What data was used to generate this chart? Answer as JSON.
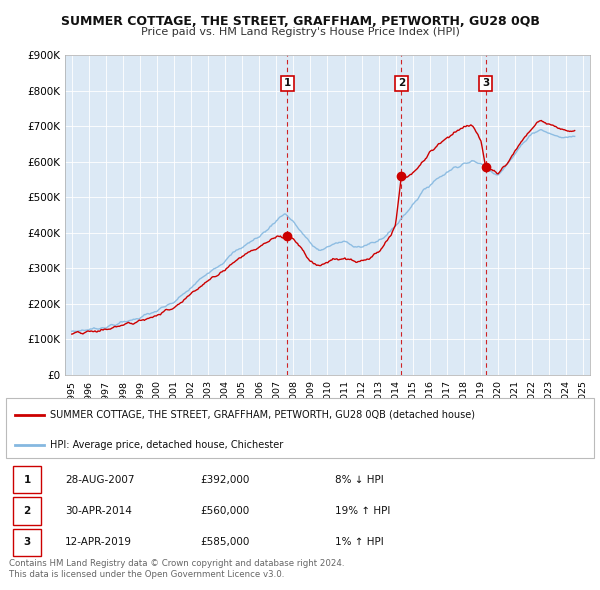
{
  "title": "SUMMER COTTAGE, THE STREET, GRAFFHAM, PETWORTH, GU28 0QB",
  "subtitle": "Price paid vs. HM Land Registry's House Price Index (HPI)",
  "background_color": "#ffffff",
  "plot_bg_color": "#dce9f5",
  "grid_color": "#c8d8e8",
  "hpi_line_color": "#85b8e0",
  "price_line_color": "#cc0000",
  "ylim": [
    0,
    900000
  ],
  "yticks": [
    0,
    100000,
    200000,
    300000,
    400000,
    500000,
    600000,
    700000,
    800000,
    900000
  ],
  "ytick_labels": [
    "£0",
    "£100K",
    "£200K",
    "£300K",
    "£400K",
    "£500K",
    "£600K",
    "£700K",
    "£800K",
    "£900K"
  ],
  "xlim_start": 1994.6,
  "xlim_end": 2025.4,
  "sale_dates": [
    2007.65,
    2014.33,
    2019.27
  ],
  "sale_prices": [
    392000,
    560000,
    585000
  ],
  "sale_labels": [
    "1",
    "2",
    "3"
  ],
  "sale_date_strs": [
    "28-AUG-2007",
    "30-APR-2014",
    "12-APR-2019"
  ],
  "sale_price_strs": [
    "£392,000",
    "£560,000",
    "£585,000"
  ],
  "sale_hpi_strs": [
    "8% ↓ HPI",
    "19% ↑ HPI",
    "1% ↑ HPI"
  ],
  "legend_label1": "SUMMER COTTAGE, THE STREET, GRAFFHAM, PETWORTH, GU28 0QB (detached house)",
  "legend_label2": "HPI: Average price, detached house, Chichester",
  "footnote1": "Contains HM Land Registry data © Crown copyright and database right 2024.",
  "footnote2": "This data is licensed under the Open Government Licence v3.0."
}
